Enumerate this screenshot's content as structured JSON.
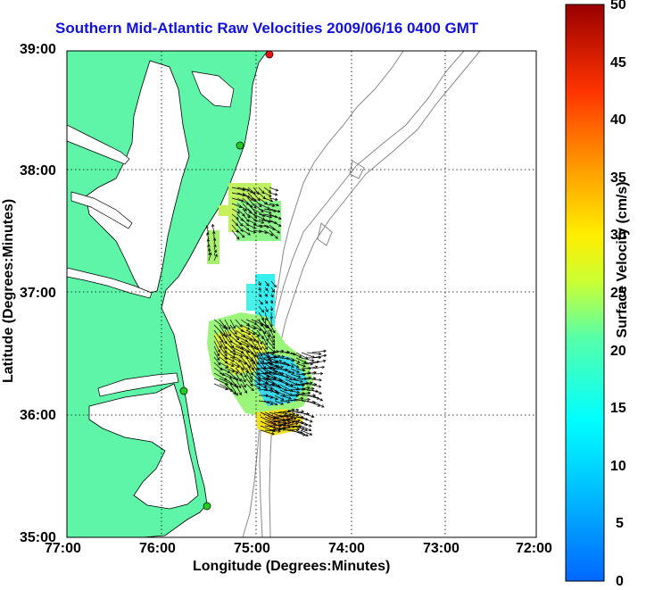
{
  "title": "Southern Mid-Atlantic Raw Velocities 2009/06/16 0400 GMT",
  "x_axis": {
    "label": "Longitude (Degrees:Minutes)",
    "ticks": [
      "77:00",
      "76:00",
      "75:00",
      "74:00",
      "73:00",
      "72:00"
    ]
  },
  "y_axis": {
    "label": "Latitude (Degrees:Minutes)",
    "ticks": [
      "39:00",
      "38:00",
      "37:00",
      "36:00",
      "35:00"
    ]
  },
  "colorbar": {
    "label": "Surface Velocity (cm/s)",
    "ticks": [
      "50",
      "45",
      "40",
      "35",
      "30",
      "25",
      "20",
      "15",
      "10",
      "5",
      "0"
    ]
  },
  "colors": {
    "land": "#5ef5a8",
    "title": "#1010e0",
    "bathymetry": "#888888",
    "station_green": "#22cc22",
    "station_red": "#ee1111"
  }
}
